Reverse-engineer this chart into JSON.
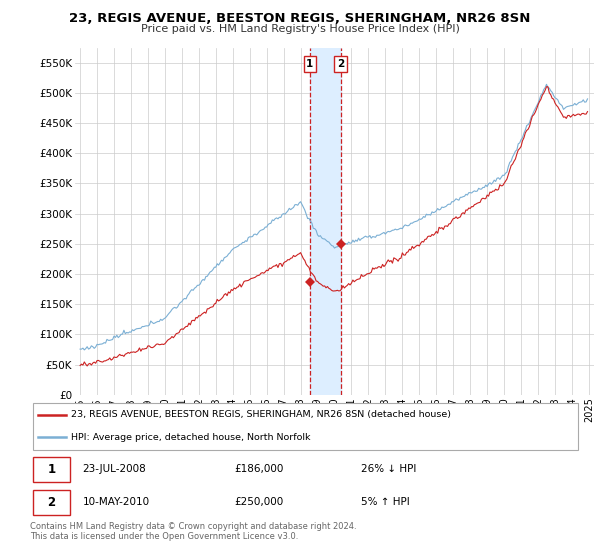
{
  "title": "23, REGIS AVENUE, BEESTON REGIS, SHERINGHAM, NR26 8SN",
  "subtitle": "Price paid vs. HM Land Registry's House Price Index (HPI)",
  "legend_line1": "23, REGIS AVENUE, BEESTON REGIS, SHERINGHAM, NR26 8SN (detached house)",
  "legend_line2": "HPI: Average price, detached house, North Norfolk",
  "footer": "Contains HM Land Registry data © Crown copyright and database right 2024.\nThis data is licensed under the Open Government Licence v3.0.",
  "transaction1_date": "23-JUL-2008",
  "transaction1_price": "£186,000",
  "transaction1_hpi": "26% ↓ HPI",
  "transaction2_date": "10-MAY-2010",
  "transaction2_price": "£250,000",
  "transaction2_hpi": "5% ↑ HPI",
  "hpi_color": "#7bafd4",
  "price_color": "#cc2222",
  "highlight_color": "#ddeeff",
  "background_color": "#ffffff",
  "grid_color": "#cccccc",
  "ylim": [
    0,
    575000
  ],
  "yticks": [
    0,
    50000,
    100000,
    150000,
    200000,
    250000,
    300000,
    350000,
    400000,
    450000,
    500000,
    550000
  ],
  "ytick_labels": [
    "£0",
    "£50K",
    "£100K",
    "£150K",
    "£200K",
    "£250K",
    "£300K",
    "£350K",
    "£400K",
    "£450K",
    "£500K",
    "£550K"
  ],
  "transaction1_x": 2008.55,
  "transaction1_y": 186000,
  "transaction2_x": 2010.36,
  "transaction2_y": 250000,
  "xmin": 1994.7,
  "xmax": 2025.3
}
